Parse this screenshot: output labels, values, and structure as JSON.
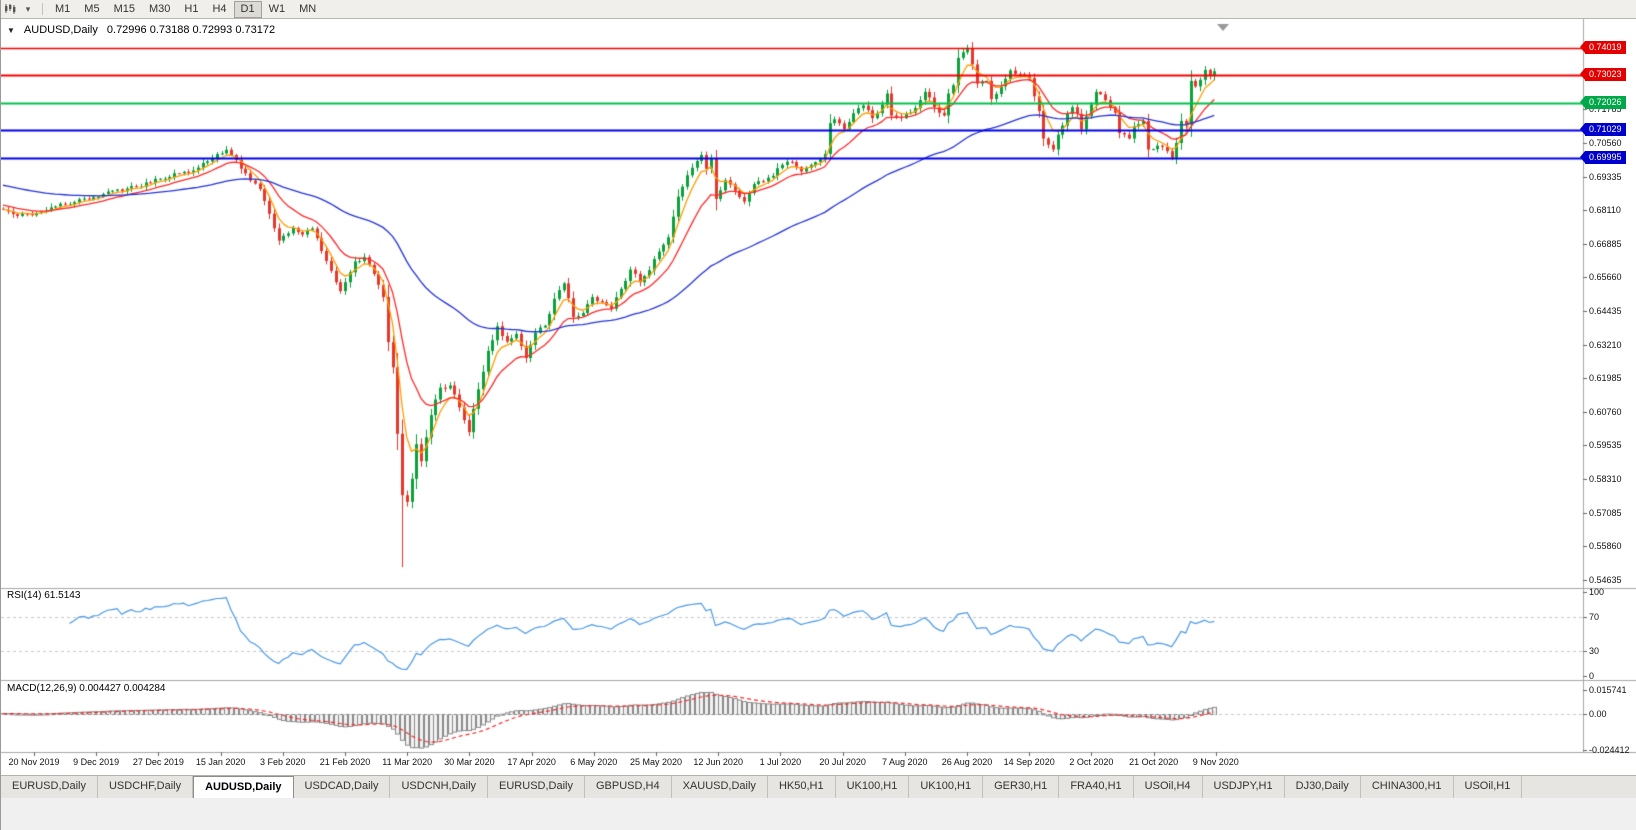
{
  "icons": {
    "chart_dropdown": "▼",
    "toolbar_caret": "▾"
  },
  "toolbar": {
    "timeframes": [
      "M1",
      "M5",
      "M15",
      "M30",
      "H1",
      "H4",
      "D1",
      "W1",
      "MN"
    ],
    "active": "D1"
  },
  "chart": {
    "title": "AUDUSD,Daily",
    "ohlc_text": "0.72996 0.73188 0.72993 0.73172"
  },
  "price_axis": {
    "plain_ticks": [
      "0.71785",
      "0.70560",
      "0.69335",
      "0.68110",
      "0.66885",
      "0.65660",
      "0.64435",
      "0.63210",
      "0.61985",
      "0.60760",
      "0.59535",
      "0.58310",
      "0.57085",
      "0.55860",
      "0.54635"
    ],
    "levels": [
      {
        "label": "0.74019",
        "value": 0.74019,
        "badge_color": "#e30000",
        "line_color": "#f60000",
        "line_width": 1.4
      },
      {
        "label": "0.73023",
        "value": 0.73023,
        "badge_color": "#e30000",
        "line_color": "#f60000",
        "line_width": 2
      },
      {
        "label": "0.72026",
        "value": 0.72026,
        "badge_color": "#00a84a",
        "line_color": "#00c24a",
        "line_width": 2
      },
      {
        "label": "0.71029",
        "value": 0.71029,
        "badge_color": "#0000cd",
        "line_color": "#0000e6",
        "line_width": 2
      },
      {
        "label": "0.69995",
        "value": 0.69995,
        "badge_color": "#0000cd",
        "line_color": "#0000e6",
        "line_width": 2
      }
    ]
  },
  "indicators": {
    "rsi": {
      "label": "RSI(14) 61.5143",
      "period": 14,
      "current": 61.5143,
      "ticks": [
        "100",
        "70",
        "30",
        "0"
      ],
      "levels": [
        70,
        30
      ]
    },
    "macd": {
      "label": "MACD(12,26,9) 0.004427 0.004284",
      "fast": 12,
      "slow": 26,
      "signal_period": 9,
      "current_macd": 0.004427,
      "current_signal": 0.004284,
      "ticks": [
        "0.015741",
        "0.00",
        "-0.024412"
      ],
      "scale_max": 0.015741,
      "scale_min": -0.024412
    }
  },
  "dates": [
    "20 Nov 2019",
    "9 Dec 2019",
    "27 Dec 2019",
    "15 Jan 2020",
    "3 Feb 2020",
    "21 Feb 2020",
    "11 Mar 2020",
    "30 Mar 2020",
    "17 Apr 2020",
    "6 May 2020",
    "25 May 2020",
    "12 Jun 2020",
    "1 Jul 2020",
    "20 Jul 2020",
    "7 Aug 2020",
    "26 Aug 2020",
    "14 Sep 2020",
    "2 Oct 2020",
    "21 Oct 2020",
    "9 Nov 2020"
  ],
  "tabs": {
    "items": [
      "EURUSD,Daily",
      "USDCHF,Daily",
      "AUDUSD,Daily",
      "USDCAD,Daily",
      "USDCNH,Daily",
      "EURUSD,Daily",
      "GBPUSD,H4",
      "XAUUSD,Daily",
      "HK50,H1",
      "UK100,H1",
      "UK100,H1",
      "GER30,H1",
      "FRA40,H1",
      "USOil,H4",
      "USDJPY,H1",
      "DJ30,Daily",
      "CHINA300,H1",
      "USOil,H1"
    ],
    "active_index": 2
  },
  "colors": {
    "candle_up": "#0ca13c",
    "candle_down": "#e6372e",
    "rsi_line": "#4a99e8",
    "macd_hist": "#8a8a8a",
    "macd_signal": "#ff2d2d",
    "dashed_level": "#c9c9c9",
    "separator": "#a6a6a6"
  },
  "chart_data": {
    "type": "candlestick",
    "symbol": "AUDUSD",
    "timeframe": "Daily",
    "current_ohlc": {
      "open": 0.72996,
      "high": 0.73188,
      "low": 0.72993,
      "close": 0.73172
    },
    "y_range": [
      0.5449,
      0.7482
    ],
    "x_labels": [
      "20 Nov 2019",
      "9 Dec 2019",
      "27 Dec 2019",
      "15 Jan 2020",
      "3 Feb 2020",
      "21 Feb 2020",
      "11 Mar 2020",
      "30 Mar 2020",
      "17 Apr 2020",
      "6 May 2020",
      "25 May 2020",
      "12 Jun 2020",
      "1 Jul 2020",
      "20 Jul 2020",
      "7 Aug 2020",
      "26 Aug 2020",
      "14 Sep 2020",
      "2 Oct 2020",
      "21 Oct 2020",
      "9 Nov 2020"
    ],
    "horizontal_levels": [
      0.74019,
      0.73023,
      0.72026,
      0.71029,
      0.69995
    ],
    "moving_averages": [
      {
        "name": "fast-ma",
        "period": 5,
        "color": "#ff9d00",
        "seed": 0.6815
      },
      {
        "name": "mid-ma",
        "period": 13,
        "color": "#ff2a2a",
        "seed": 0.6832
      },
      {
        "name": "slow-ma",
        "period": 55,
        "color": "#2634d8",
        "seed": 0.6905
      }
    ],
    "candles": {
      "count": 256,
      "noise": 0.0008,
      "seed": 42,
      "spike": {
        "index": 84,
        "low": 0.551
      },
      "close_anchors": [
        [
          0,
          0.6812
        ],
        [
          3,
          0.679
        ],
        [
          7,
          0.68
        ],
        [
          11,
          0.6825
        ],
        [
          15,
          0.684
        ],
        [
          19,
          0.6858
        ],
        [
          23,
          0.6882
        ],
        [
          28,
          0.6896
        ],
        [
          32,
          0.6925
        ],
        [
          37,
          0.6945
        ],
        [
          41,
          0.6966
        ],
        [
          44,
          0.7
        ],
        [
          47,
          0.7031
        ],
        [
          49,
          0.6994
        ],
        [
          51,
          0.6945
        ],
        [
          54,
          0.6888
        ],
        [
          56,
          0.6798
        ],
        [
          58,
          0.67
        ],
        [
          61,
          0.6746
        ],
        [
          63,
          0.6722
        ],
        [
          65,
          0.6744
        ],
        [
          67,
          0.6662
        ],
        [
          69,
          0.659
        ],
        [
          71,
          0.6516
        ],
        [
          74,
          0.6624
        ],
        [
          76,
          0.664
        ],
        [
          78,
          0.6578
        ],
        [
          80,
          0.6494
        ],
        [
          81,
          0.633
        ],
        [
          82,
          0.6238
        ],
        [
          83,
          0.5996
        ],
        [
          84,
          0.5772
        ],
        [
          85,
          0.5748
        ],
        [
          86,
          0.5832
        ],
        [
          87,
          0.5958
        ],
        [
          88,
          0.5896
        ],
        [
          90,
          0.6064
        ],
        [
          92,
          0.6164
        ],
        [
          94,
          0.6172
        ],
        [
          96,
          0.6092
        ],
        [
          98,
          0.6002
        ],
        [
          100,
          0.6158
        ],
        [
          102,
          0.6298
        ],
        [
          104,
          0.6388
        ],
        [
          106,
          0.6332
        ],
        [
          108,
          0.636
        ],
        [
          110,
          0.6272
        ],
        [
          112,
          0.6364
        ],
        [
          114,
          0.639
        ],
        [
          116,
          0.6488
        ],
        [
          118,
          0.6544
        ],
        [
          120,
          0.6422
        ],
        [
          122,
          0.6436
        ],
        [
          124,
          0.6494
        ],
        [
          126,
          0.6476
        ],
        [
          128,
          0.6452
        ],
        [
          130,
          0.6524
        ],
        [
          132,
          0.6594
        ],
        [
          134,
          0.6548
        ],
        [
          136,
          0.6592
        ],
        [
          138,
          0.666
        ],
        [
          140,
          0.6712
        ],
        [
          142,
          0.686
        ],
        [
          144,
          0.6938
        ],
        [
          146,
          0.699
        ],
        [
          147,
          0.7012
        ],
        [
          148,
          0.6962
        ],
        [
          149,
          0.7
        ],
        [
          150,
          0.6852
        ],
        [
          152,
          0.692
        ],
        [
          154,
          0.6882
        ],
        [
          156,
          0.6842
        ],
        [
          158,
          0.6906
        ],
        [
          160,
          0.6916
        ],
        [
          162,
          0.6936
        ],
        [
          164,
          0.6976
        ],
        [
          166,
          0.6986
        ],
        [
          168,
          0.6952
        ],
        [
          170,
          0.6976
        ],
        [
          173,
          0.7016
        ],
        [
          174,
          0.7128
        ],
        [
          175,
          0.7142
        ],
        [
          177,
          0.7106
        ],
        [
          179,
          0.7164
        ],
        [
          181,
          0.7192
        ],
        [
          183,
          0.7146
        ],
        [
          185,
          0.7196
        ],
        [
          186,
          0.7236
        ],
        [
          187,
          0.7156
        ],
        [
          189,
          0.7146
        ],
        [
          191,
          0.7166
        ],
        [
          193,
          0.7212
        ],
        [
          194,
          0.7242
        ],
        [
          196,
          0.7186
        ],
        [
          198,
          0.7156
        ],
        [
          199,
          0.7236
        ],
        [
          200,
          0.7266
        ],
        [
          201,
          0.7366
        ],
        [
          203,
          0.74
        ],
        [
          204,
          0.7342
        ],
        [
          205,
          0.7272
        ],
        [
          207,
          0.7282
        ],
        [
          208,
          0.7216
        ],
        [
          210,
          0.7262
        ],
        [
          212,
          0.732
        ],
        [
          214,
          0.7306
        ],
        [
          216,
          0.7292
        ],
        [
          217,
          0.7226
        ],
        [
          218,
          0.7172
        ],
        [
          219,
          0.7072
        ],
        [
          221,
          0.7032
        ],
        [
          222,
          0.7086
        ],
        [
          224,
          0.7162
        ],
        [
          225,
          0.7186
        ],
        [
          226,
          0.7162
        ],
        [
          227,
          0.7106
        ],
        [
          229,
          0.7196
        ],
        [
          230,
          0.7242
        ],
        [
          232,
          0.7212
        ],
        [
          234,
          0.7166
        ],
        [
          235,
          0.7092
        ],
        [
          237,
          0.7072
        ],
        [
          238,
          0.7116
        ],
        [
          240,
          0.7136
        ],
        [
          241,
          0.7032
        ],
        [
          243,
          0.7046
        ],
        [
          245,
          0.7026
        ],
        [
          246,
          0.7002
        ],
        [
          247,
          0.7056
        ],
        [
          248,
          0.7136
        ],
        [
          249,
          0.7122
        ],
        [
          250,
          0.7282
        ],
        [
          251,
          0.7262
        ],
        [
          252,
          0.7286
        ],
        [
          253,
          0.7322
        ],
        [
          254,
          0.73
        ],
        [
          255,
          0.7317
        ]
      ]
    }
  }
}
